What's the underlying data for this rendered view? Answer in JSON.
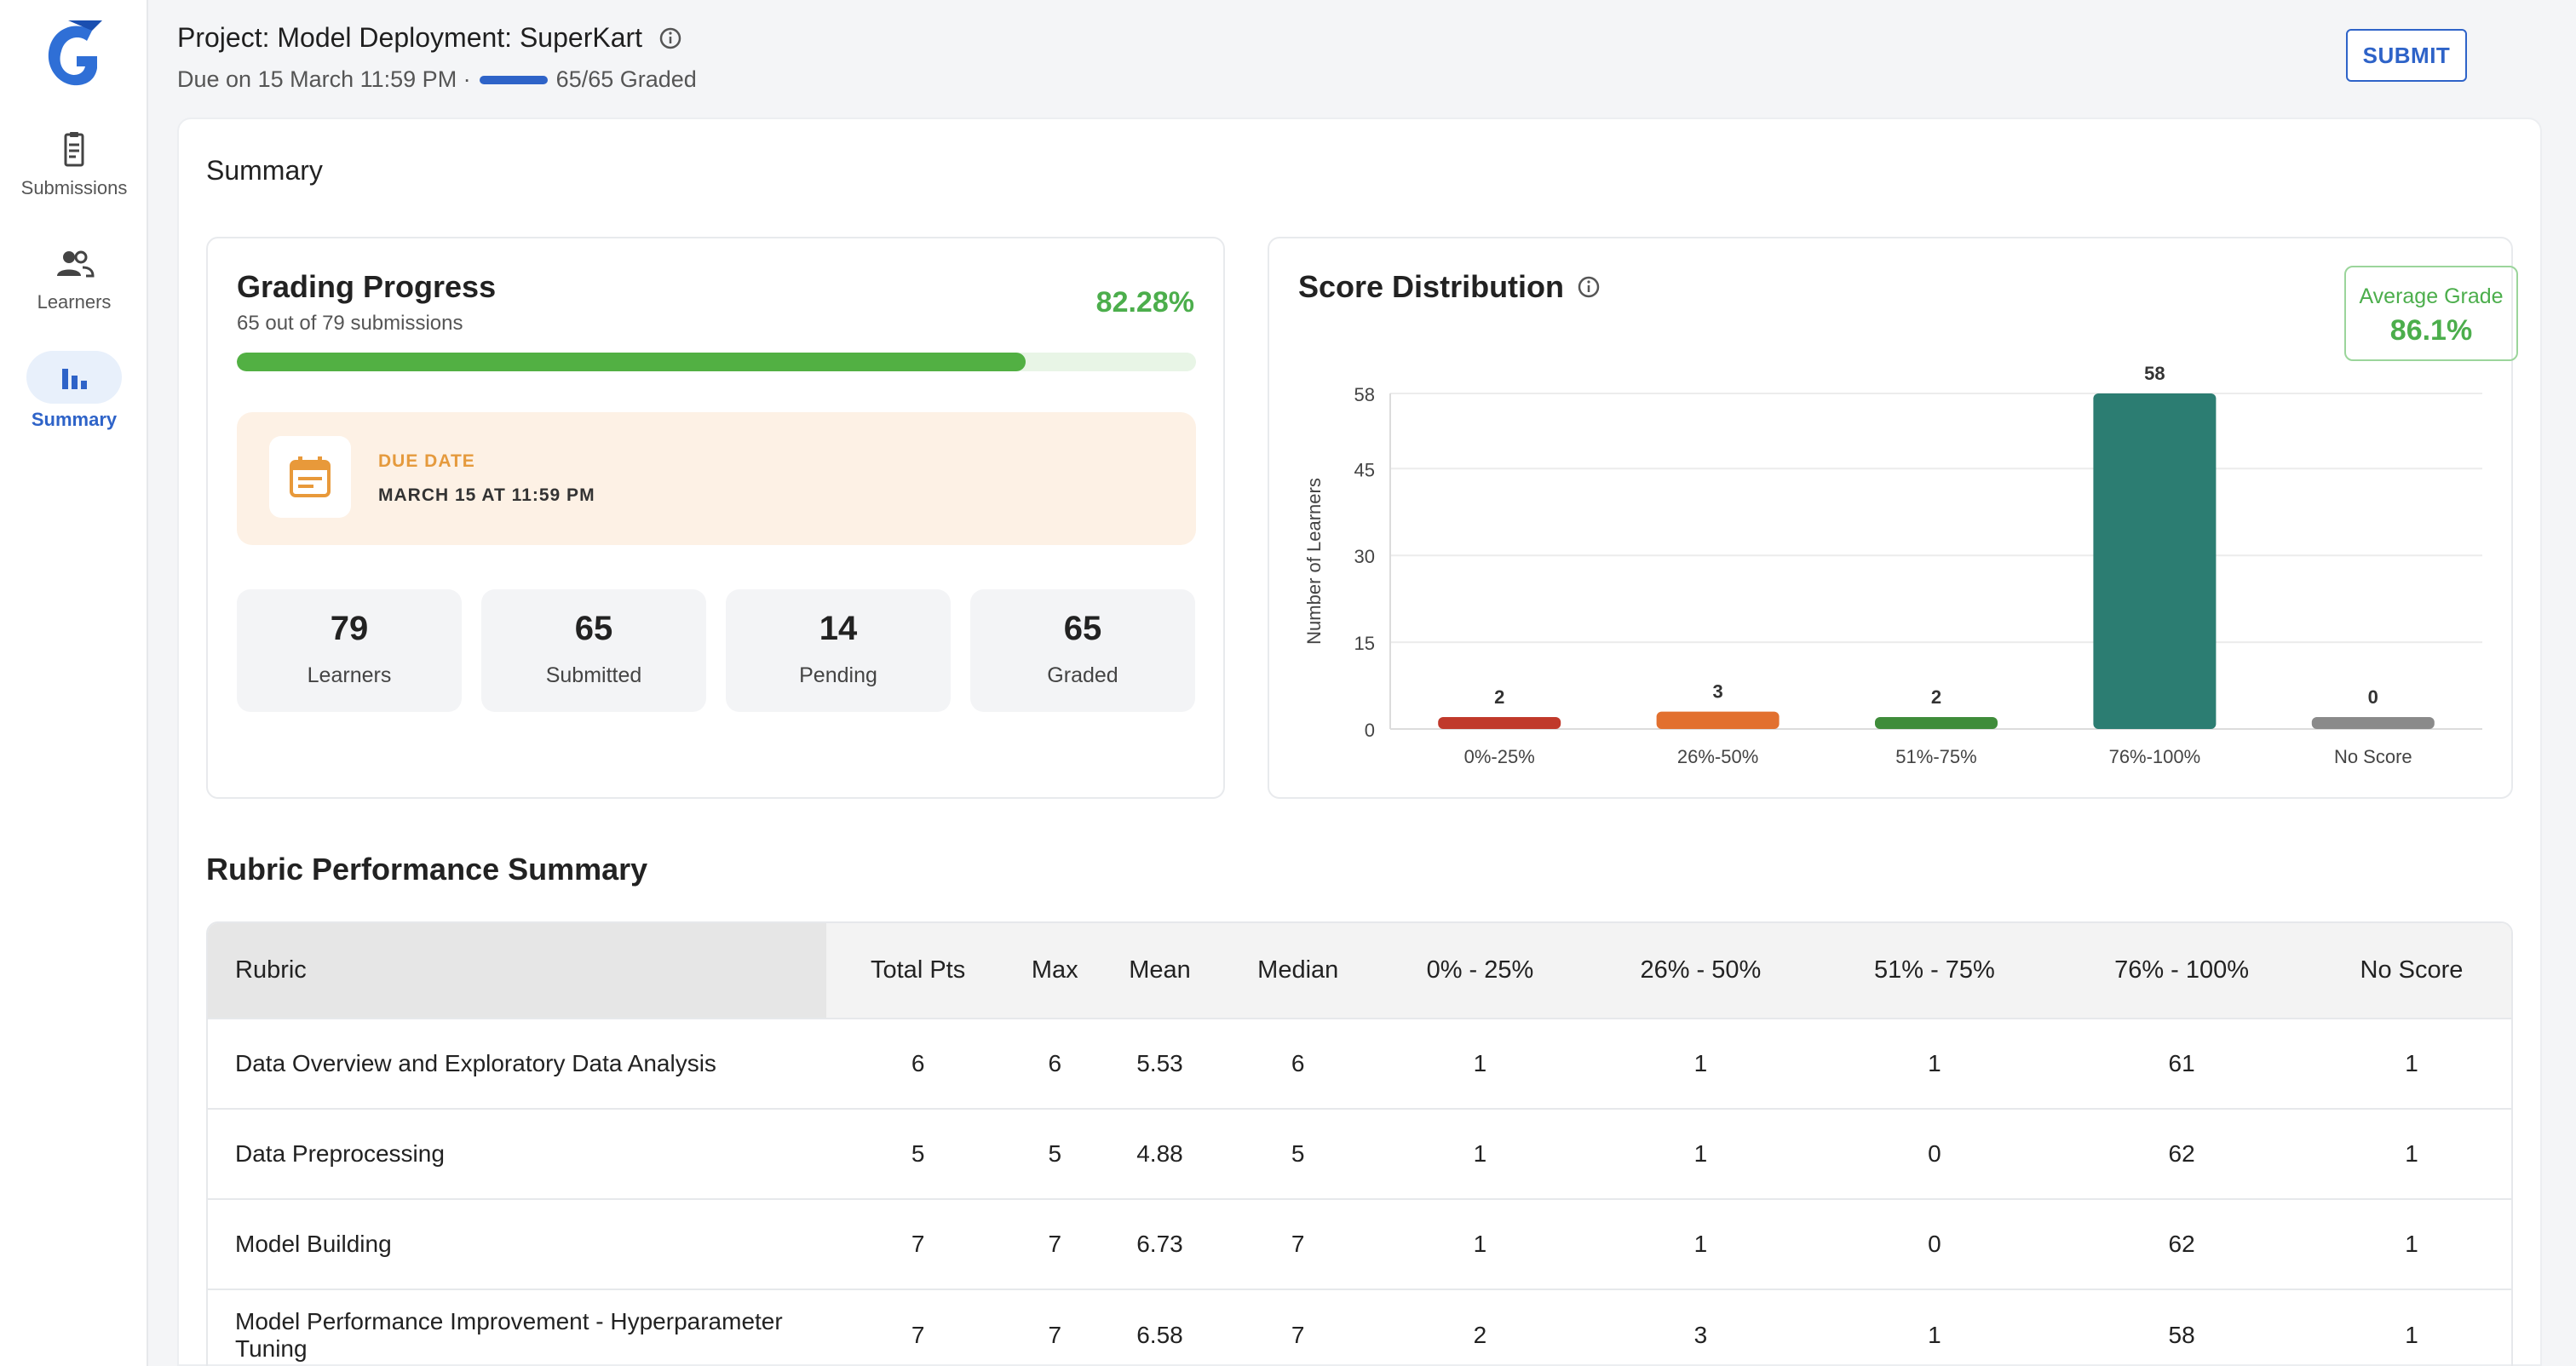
{
  "sidebar": {
    "items": [
      {
        "label": "Submissions",
        "icon": "clipboard-icon"
      },
      {
        "label": "Learners",
        "icon": "people-icon"
      },
      {
        "label": "Summary",
        "icon": "bar-chart-icon",
        "active": true
      }
    ]
  },
  "header": {
    "title": "Project: Model Deployment: SuperKart",
    "due": "Due on 15 March 11:59 PM ·",
    "graded": "65/65 Graded",
    "graded_fraction": 1.0,
    "submit_label": "SUBMIT"
  },
  "summary": {
    "title": "Summary",
    "grading_progress": {
      "title": "Grading Progress",
      "subtitle": "65 out of 79 submissions",
      "percent_label": "82.28%",
      "percent": 82.28,
      "due_label": "DUE DATE",
      "due_value": "MARCH 15 AT 11:59 PM",
      "stats": [
        {
          "num": "79",
          "label": "Learners"
        },
        {
          "num": "65",
          "label": "Submitted"
        },
        {
          "num": "14",
          "label": "Pending"
        },
        {
          "num": "65",
          "label": "Graded"
        }
      ]
    },
    "score_distribution": {
      "title": "Score Distribution",
      "avg_label": "Average Grade",
      "avg_value": "86.1%"
    }
  },
  "chart_data": {
    "type": "bar",
    "categories": [
      "0%-25%",
      "26%-50%",
      "51%-75%",
      "76%-100%",
      "No Score"
    ],
    "values": [
      2,
      3,
      2,
      58,
      0
    ],
    "colors": [
      "#c0392b",
      "#e2702f",
      "#3f8c3a",
      "#2c7d72",
      "#8a8a8a"
    ],
    "ylabel": "Number of Learners",
    "yticks": [
      0,
      15,
      30,
      45,
      58
    ],
    "ylim": [
      0,
      58
    ],
    "grid": true
  },
  "rubric": {
    "title": "Rubric Performance Summary",
    "columns": [
      "Rubric",
      "Total Pts",
      "Max",
      "Mean",
      "Median",
      "0% - 25%",
      "26% - 50%",
      "51% - 75%",
      "76% - 100%",
      "No Score"
    ],
    "rows": [
      [
        "Data Overview and Exploratory Data Analysis",
        "6",
        "6",
        "5.53",
        "6",
        "1",
        "1",
        "1",
        "61",
        "1"
      ],
      [
        "Data Preprocessing",
        "5",
        "5",
        "4.88",
        "5",
        "1",
        "1",
        "0",
        "62",
        "1"
      ],
      [
        "Model Building",
        "7",
        "7",
        "6.73",
        "7",
        "1",
        "1",
        "0",
        "62",
        "1"
      ],
      [
        "Model Performance Improvement - Hyperparameter Tuning",
        "7",
        "7",
        "6.58",
        "7",
        "2",
        "3",
        "1",
        "58",
        "1"
      ]
    ]
  }
}
